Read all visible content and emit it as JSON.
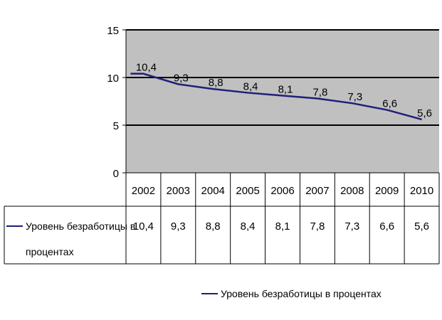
{
  "chart_data": {
    "type": "line",
    "categories": [
      "2002",
      "2003",
      "2004",
      "2005",
      "2006",
      "2007",
      "2008",
      "2009",
      "2010"
    ],
    "series": [
      {
        "name": "Уровень безработицы в процентах",
        "values": [
          10.4,
          9.3,
          8.8,
          8.4,
          8.1,
          7.8,
          7.3,
          6.6,
          5.6
        ],
        "labels": [
          "10,4",
          "9,3",
          "8,8",
          "8,4",
          "8,1",
          "7,8",
          "7,3",
          "6,6",
          "5,6"
        ],
        "color": "#1f1f7a"
      }
    ],
    "ylim": [
      0,
      15
    ],
    "yticks": [
      0,
      5,
      10,
      15
    ],
    "grid": true,
    "plot_background": "#c0c0c0",
    "legend_position": "bottom",
    "data_table": true
  },
  "table": {
    "row_label_line1": "Уровень безработицы в",
    "row_label_line2": "процентах"
  },
  "legend": {
    "label": "Уровень безработицы в процентах"
  }
}
